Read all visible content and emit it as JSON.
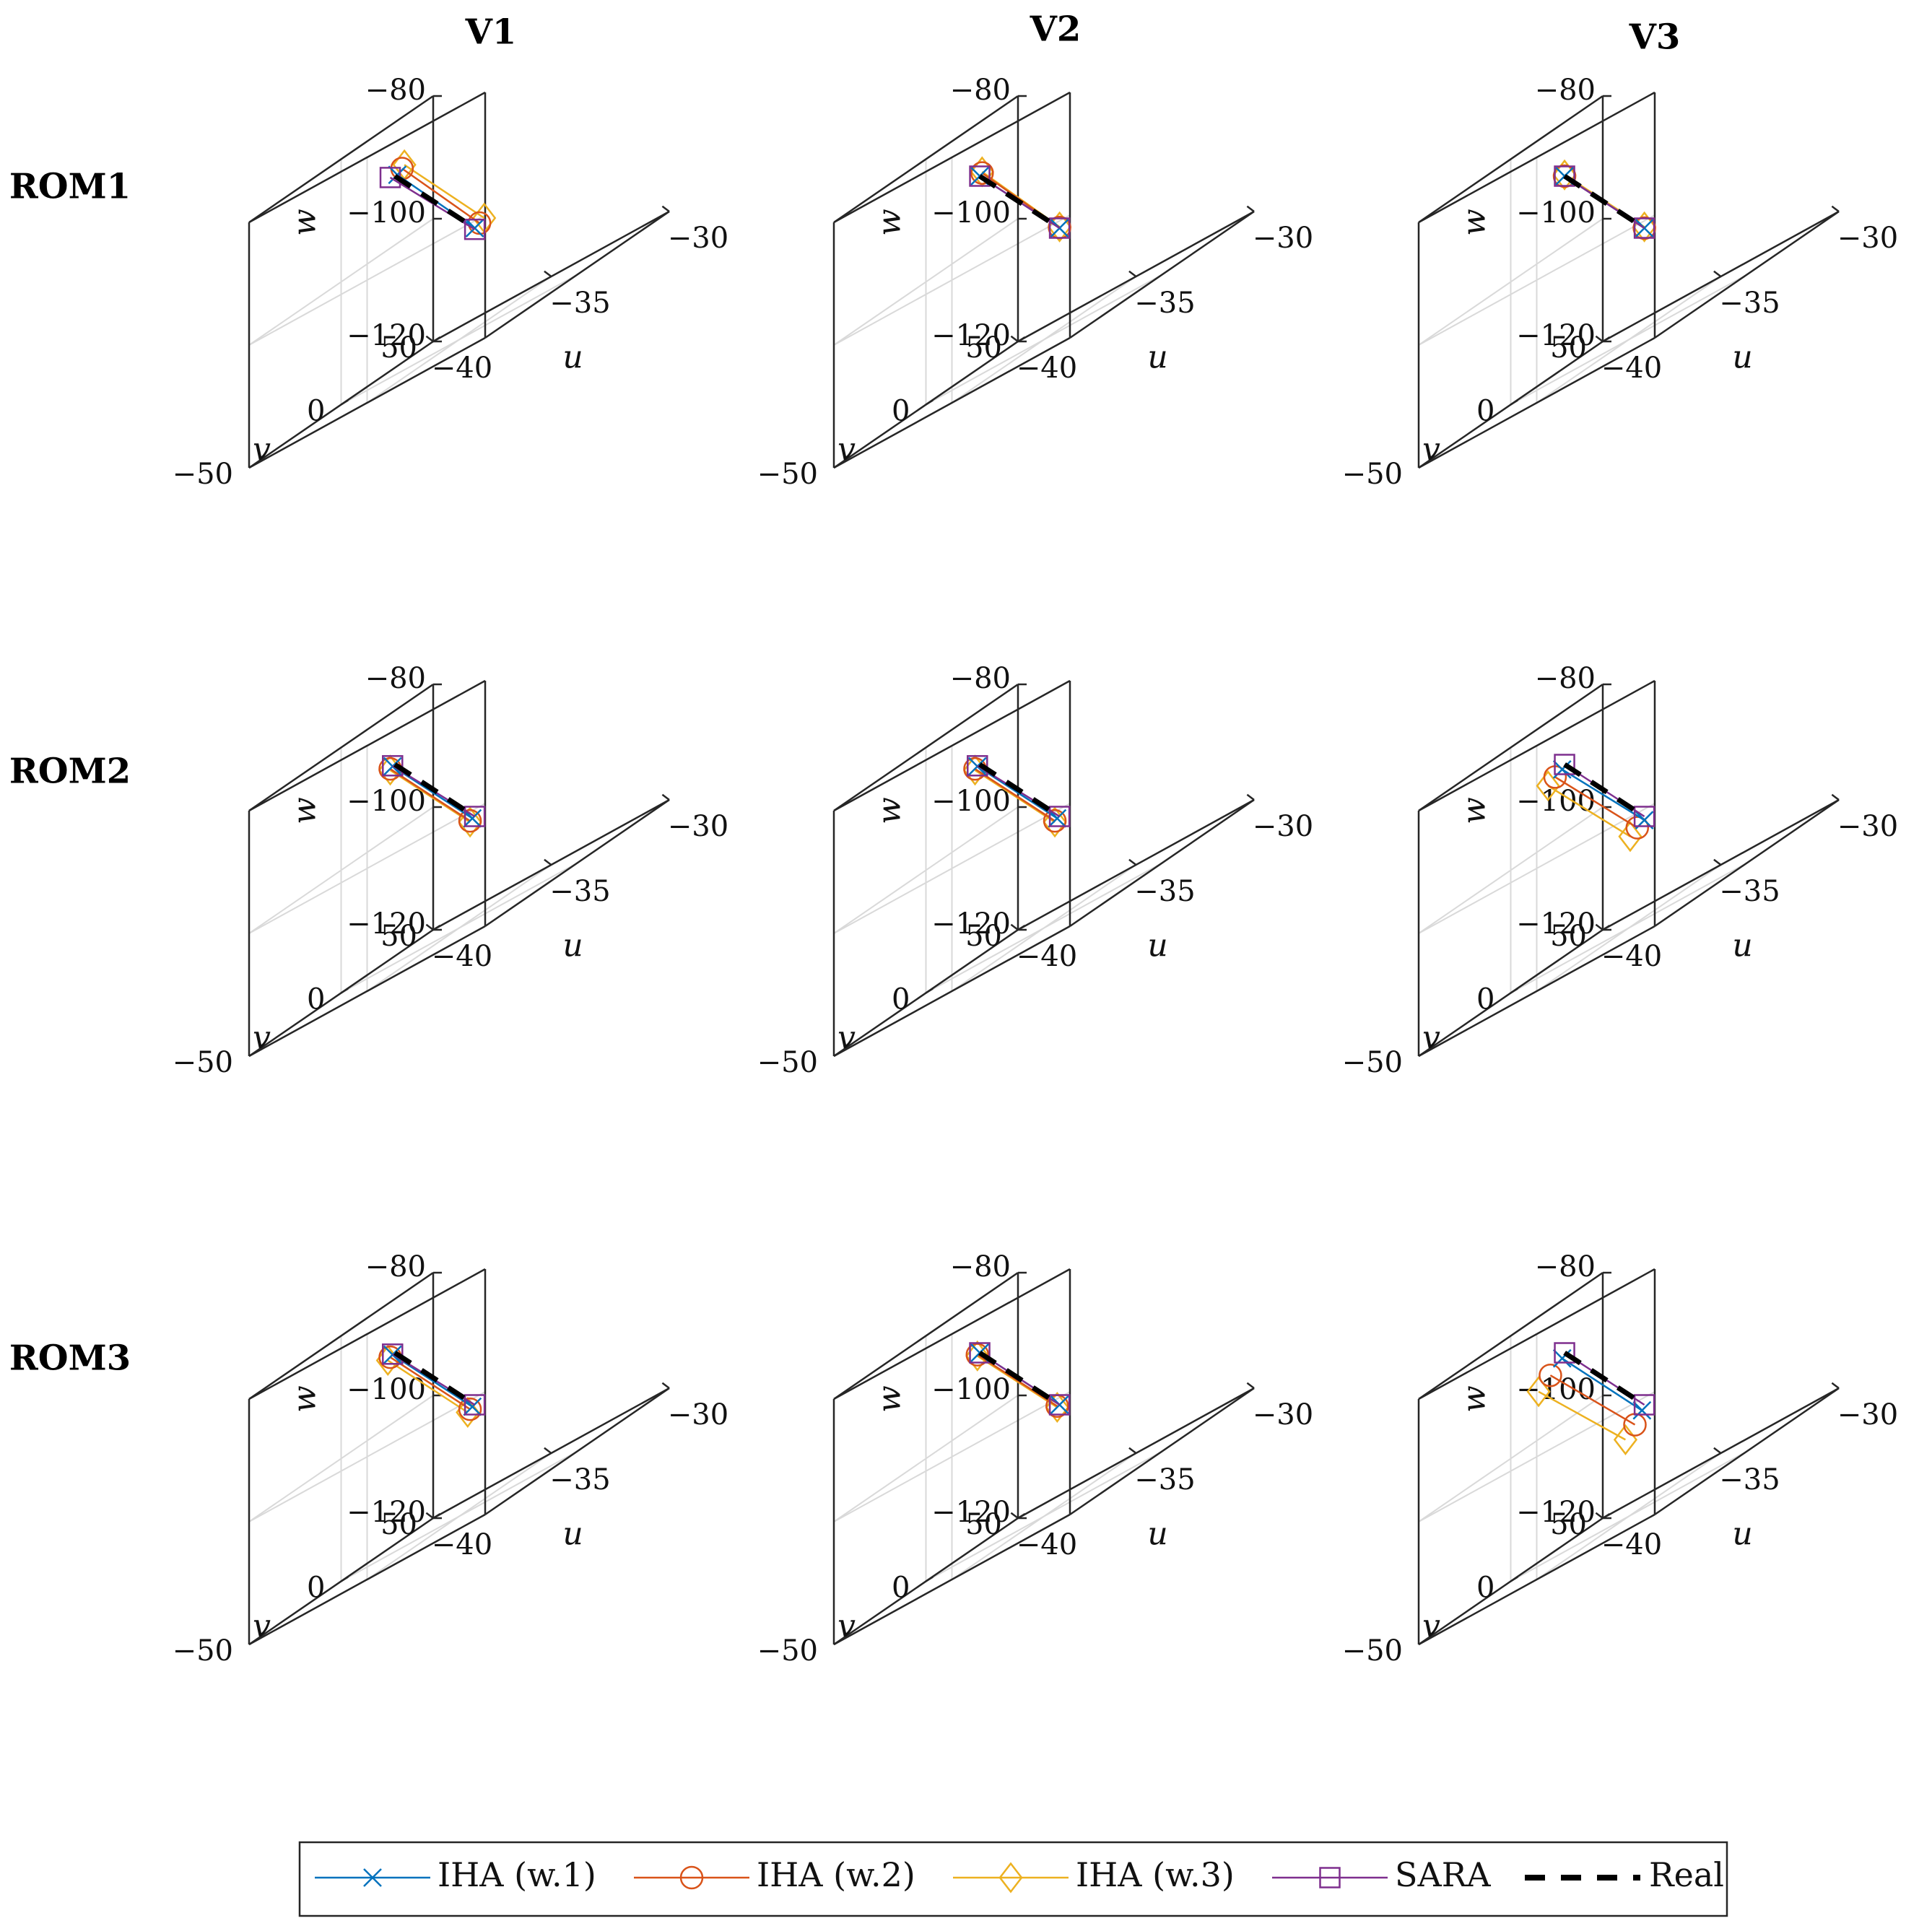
{
  "chart_data": {
    "type": "line",
    "title": "",
    "column_titles": [
      "V1",
      "V2",
      "V3"
    ],
    "row_titles": [
      "ROM1",
      "ROM2",
      "ROM3"
    ],
    "axes": {
      "xlabel": "u",
      "ylabel": "v",
      "zlabel": "w",
      "xlim": [
        -40,
        -30
      ],
      "ylim": [
        -50,
        50
      ],
      "zlim": [
        -120,
        -80
      ],
      "xticks": [
        -40,
        -35,
        -30
      ],
      "xtick_labels": [
        "−40",
        "−35",
        "−30"
      ],
      "yticks": [
        -50,
        0,
        50
      ],
      "ytick_labels": [
        "−50",
        "0",
        "50"
      ],
      "zticks": [
        -120,
        -100,
        -80
      ],
      "ztick_labels": [
        "−120",
        "−100",
        "−80"
      ],
      "grid": true
    },
    "legend": {
      "position": "bottom",
      "entries": [
        "IHA (w.1)",
        "IHA (w.2)",
        "IHA (w.3)",
        "SARA",
        "Real"
      ]
    },
    "series_styles": [
      {
        "name": "IHA (w.1)",
        "color": "#0072BD",
        "marker": "x"
      },
      {
        "name": "IHA (w.2)",
        "color": "#D95319",
        "marker": "o"
      },
      {
        "name": "IHA (w.3)",
        "color": "#EDB120",
        "marker": "diamond"
      },
      {
        "name": "SARA",
        "color": "#7E2F8E",
        "marker": "square"
      },
      {
        "name": "Real",
        "color": "#000000",
        "marker": "none",
        "dash": true
      }
    ],
    "panels": [
      {
        "row": "ROM1",
        "col": "V1",
        "series": [
          {
            "name": "IHA (w.1)",
            "points": [
              [
                -38.4,
                10,
                -88.0
              ],
              [
                -32.0,
                -30,
                -102.0
              ]
            ]
          },
          {
            "name": "IHA (w.2)",
            "points": [
              [
                -38.2,
                10,
                -87.4
              ],
              [
                -31.8,
                -30,
                -101.6
              ]
            ]
          },
          {
            "name": "IHA (w.3)",
            "points": [
              [
                -38.1,
                10,
                -87.0
              ],
              [
                -31.6,
                -30,
                -101.2
              ]
            ]
          },
          {
            "name": "SARA",
            "points": [
              [
                -38.7,
                10,
                -87.8
              ],
              [
                -32.0,
                -30,
                -102.2
              ]
            ]
          },
          {
            "name": "Real",
            "points": [
              [
                -38.5,
                10,
                -88.0
              ],
              [
                -32.0,
                -30,
                -102.0
              ]
            ]
          }
        ]
      },
      {
        "row": "ROM1",
        "col": "V2",
        "series": [
          {
            "name": "IHA (w.1)",
            "points": [
              [
                -38.5,
                10,
                -88.0
              ],
              [
                -32.0,
                -30,
                -102.0
              ]
            ]
          },
          {
            "name": "IHA (w.2)",
            "points": [
              [
                -38.4,
                10,
                -87.7
              ],
              [
                -32.0,
                -30,
                -101.9
              ]
            ]
          },
          {
            "name": "IHA (w.3)",
            "points": [
              [
                -38.4,
                10,
                -87.5
              ],
              [
                -32.0,
                -30,
                -101.8
              ]
            ]
          },
          {
            "name": "SARA",
            "points": [
              [
                -38.5,
                10,
                -88.0
              ],
              [
                -32.0,
                -30,
                -102.0
              ]
            ]
          },
          {
            "name": "Real",
            "points": [
              [
                -38.5,
                10,
                -88.0
              ],
              [
                -32.0,
                -30,
                -102.0
              ]
            ]
          }
        ]
      },
      {
        "row": "ROM1",
        "col": "V3",
        "series": [
          {
            "name": "IHA (w.1)",
            "points": [
              [
                -38.5,
                10,
                -88.0
              ],
              [
                -32.0,
                -30,
                -102.0
              ]
            ]
          },
          {
            "name": "IHA (w.2)",
            "points": [
              [
                -38.5,
                10,
                -88.0
              ],
              [
                -32.0,
                -30,
                -102.0
              ]
            ]
          },
          {
            "name": "IHA (w.3)",
            "points": [
              [
                -38.5,
                10,
                -87.8
              ],
              [
                -32.0,
                -30,
                -101.8
              ]
            ]
          },
          {
            "name": "SARA",
            "points": [
              [
                -38.5,
                10,
                -88.0
              ],
              [
                -32.0,
                -30,
                -102.0
              ]
            ]
          },
          {
            "name": "Real",
            "points": [
              [
                -38.5,
                10,
                -88.0
              ],
              [
                -32.0,
                -30,
                -102.0
              ]
            ]
          }
        ]
      },
      {
        "row": "ROM2",
        "col": "V1",
        "series": [
          {
            "name": "IHA (w.1)",
            "points": [
              [
                -38.6,
                10,
                -88.1
              ],
              [
                -32.1,
                -30,
                -102.1
              ]
            ]
          },
          {
            "name": "IHA (w.2)",
            "points": [
              [
                -38.7,
                10,
                -88.3
              ],
              [
                -32.2,
                -30,
                -102.3
              ]
            ]
          },
          {
            "name": "IHA (w.3)",
            "points": [
              [
                -38.7,
                10,
                -88.5
              ],
              [
                -32.2,
                -30,
                -102.5
              ]
            ]
          },
          {
            "name": "SARA",
            "points": [
              [
                -38.6,
                10,
                -88.0
              ],
              [
                -32.0,
                -30,
                -102.0
              ]
            ]
          },
          {
            "name": "Real",
            "points": [
              [
                -38.5,
                10,
                -88.0
              ],
              [
                -32.0,
                -30,
                -102.0
              ]
            ]
          }
        ]
      },
      {
        "row": "ROM2",
        "col": "V2",
        "series": [
          {
            "name": "IHA (w.1)",
            "points": [
              [
                -38.6,
                10,
                -88.1
              ],
              [
                -32.1,
                -30,
                -102.1
              ]
            ]
          },
          {
            "name": "IHA (w.2)",
            "points": [
              [
                -38.7,
                10,
                -88.3
              ],
              [
                -32.2,
                -30,
                -102.3
              ]
            ]
          },
          {
            "name": "IHA (w.3)",
            "points": [
              [
                -38.7,
                10,
                -88.5
              ],
              [
                -32.2,
                -30,
                -102.5
              ]
            ]
          },
          {
            "name": "SARA",
            "points": [
              [
                -38.6,
                10,
                -88.0
              ],
              [
                -32.0,
                -30,
                -102.0
              ]
            ]
          },
          {
            "name": "Real",
            "points": [
              [
                -38.5,
                10,
                -88.0
              ],
              [
                -32.0,
                -30,
                -102.0
              ]
            ]
          }
        ]
      },
      {
        "row": "ROM2",
        "col": "V3",
        "series": [
          {
            "name": "IHA (w.1)",
            "points": [
              [
                -38.6,
                10,
                -88.6
              ],
              [
                -32.0,
                -30,
                -102.6
              ]
            ]
          },
          {
            "name": "IHA (w.2)",
            "points": [
              [
                -38.9,
                10,
                -89.2
              ],
              [
                -32.3,
                -30,
                -103.2
              ]
            ]
          },
          {
            "name": "IHA (w.3)",
            "points": [
              [
                -39.2,
                10,
                -90.0
              ],
              [
                -32.6,
                -30,
                -104.0
              ]
            ]
          },
          {
            "name": "SARA",
            "points": [
              [
                -38.5,
                10,
                -88.0
              ],
              [
                -32.0,
                -30,
                -102.0
              ]
            ]
          },
          {
            "name": "Real",
            "points": [
              [
                -38.5,
                10,
                -88.0
              ],
              [
                -32.0,
                -30,
                -102.0
              ]
            ]
          }
        ]
      },
      {
        "row": "ROM3",
        "col": "V1",
        "series": [
          {
            "name": "IHA (w.1)",
            "points": [
              [
                -38.6,
                10,
                -88.1
              ],
              [
                -32.1,
                -30,
                -102.1
              ]
            ]
          },
          {
            "name": "IHA (w.2)",
            "points": [
              [
                -38.7,
                10,
                -88.3
              ],
              [
                -32.2,
                -30,
                -102.3
              ]
            ]
          },
          {
            "name": "IHA (w.3)",
            "points": [
              [
                -38.8,
                10,
                -88.6
              ],
              [
                -32.3,
                -30,
                -102.6
              ]
            ]
          },
          {
            "name": "SARA",
            "points": [
              [
                -38.6,
                10,
                -88.0
              ],
              [
                -32.0,
                -30,
                -102.0
              ]
            ]
          },
          {
            "name": "Real",
            "points": [
              [
                -38.5,
                10,
                -88.0
              ],
              [
                -32.0,
                -30,
                -102.0
              ]
            ]
          }
        ]
      },
      {
        "row": "ROM3",
        "col": "V2",
        "series": [
          {
            "name": "IHA (w.1)",
            "points": [
              [
                -38.5,
                10,
                -88.0
              ],
              [
                -32.0,
                -30,
                -102.0
              ]
            ]
          },
          {
            "name": "IHA (w.2)",
            "points": [
              [
                -38.6,
                10,
                -88.1
              ],
              [
                -32.1,
                -30,
                -102.0
              ]
            ]
          },
          {
            "name": "IHA (w.3)",
            "points": [
              [
                -38.6,
                10,
                -88.3
              ],
              [
                -32.1,
                -30,
                -102.2
              ]
            ]
          },
          {
            "name": "SARA",
            "points": [
              [
                -38.5,
                10,
                -88.0
              ],
              [
                -32.0,
                -30,
                -102.0
              ]
            ]
          },
          {
            "name": "Real",
            "points": [
              [
                -38.5,
                10,
                -88.0
              ],
              [
                -32.0,
                -30,
                -102.0
              ]
            ]
          }
        ]
      },
      {
        "row": "ROM3",
        "col": "V3",
        "series": [
          {
            "name": "IHA (w.1)",
            "points": [
              [
                -38.6,
                10,
                -88.7
              ],
              [
                -32.1,
                -30,
                -102.7
              ]
            ]
          },
          {
            "name": "IHA (w.2)",
            "points": [
              [
                -39.1,
                10,
                -90.4
              ],
              [
                -32.4,
                -30,
                -104.4
              ]
            ]
          },
          {
            "name": "IHA (w.3)",
            "points": [
              [
                -39.6,
                10,
                -92.0
              ],
              [
                -32.8,
                -30,
                -106.0
              ]
            ]
          },
          {
            "name": "SARA",
            "points": [
              [
                -38.5,
                10,
                -88.0
              ],
              [
                -32.0,
                -30,
                -102.0
              ]
            ]
          },
          {
            "name": "Real",
            "points": [
              [
                -38.5,
                10,
                -88.0
              ],
              [
                -32.0,
                -30,
                -102.0
              ]
            ]
          }
        ]
      }
    ]
  }
}
